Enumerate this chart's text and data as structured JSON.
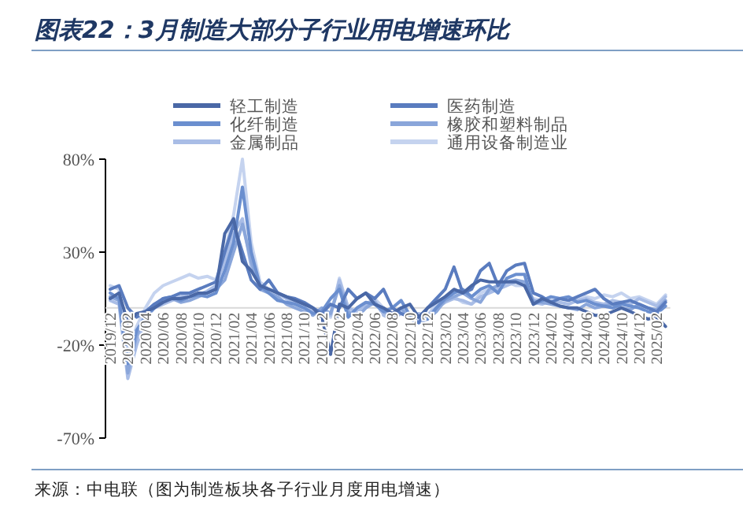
{
  "chart_data": {
    "type": "line",
    "title": "图表22：3月制造大部分子行业用电增速环比",
    "annotations": [
      "来源：中电联（图为制造板块各子行业月度用电增速）"
    ],
    "categories": [
      "2019/12",
      null,
      "2020/02",
      null,
      "2020/04",
      null,
      "2020/06",
      null,
      "2020/08",
      null,
      "2020/10",
      null,
      "2020/12",
      null,
      "2021/02",
      null,
      "2021/04",
      null,
      "2021/06",
      null,
      "2021/08",
      null,
      "2021/10",
      null,
      "2021/12",
      null,
      "2022/02",
      null,
      "2022/04",
      null,
      "2022/06",
      null,
      "2022/08",
      null,
      "2022/10",
      null,
      "2022/12",
      null,
      "2023/02",
      null,
      "2023/04",
      null,
      "2023/06",
      null,
      "2023/08",
      null,
      "2023/10",
      null,
      "2023/12",
      null,
      "2024/02",
      null,
      "2024/04",
      null,
      "2024/06",
      null,
      "2024/08",
      null,
      "2024/10",
      null,
      "2024/12",
      null,
      "2025/02",
      null
    ],
    "ylim": [
      -70,
      80
    ],
    "yticks": [
      {
        "value": -70,
        "label": "-70%"
      },
      {
        "value": -20,
        "label": "-20%"
      },
      {
        "value": 30,
        "label": "30%"
      },
      {
        "value": 80,
        "label": "80%"
      }
    ],
    "grid": false,
    "legend": "top",
    "marker": "none",
    "line_style": "solid",
    "series": [
      {
        "name": "轻工制造",
        "color": "#4a68a6",
        "values": [
          5,
          8,
          -8,
          -3,
          -2,
          0,
          3,
          5,
          5,
          6,
          8,
          8,
          10,
          40,
          48,
          25,
          20,
          12,
          10,
          8,
          6,
          4,
          2,
          0,
          -5,
          -25,
          2,
          0,
          5,
          8,
          2,
          0,
          -3,
          0,
          2,
          -5,
          0,
          3,
          6,
          10,
          8,
          12,
          15,
          14,
          14,
          14,
          14,
          12,
          2,
          5,
          3,
          1,
          0,
          0,
          -2,
          -4,
          -4,
          -2,
          0,
          -2,
          -4,
          -6,
          -5,
          -10
        ]
      },
      {
        "name": "医药制造",
        "color": "#5a7cbf",
        "values": [
          10,
          12,
          0,
          -5,
          -2,
          2,
          5,
          6,
          8,
          8,
          10,
          12,
          14,
          30,
          45,
          30,
          15,
          10,
          15,
          8,
          6,
          5,
          3,
          0,
          -3,
          2,
          0,
          10,
          5,
          8,
          5,
          10,
          0,
          -3,
          -5,
          -8,
          0,
          5,
          10,
          22,
          8,
          10,
          20,
          24,
          12,
          20,
          23,
          24,
          8,
          6,
          3,
          5,
          4,
          6,
          8,
          10,
          5,
          2,
          3,
          4,
          2,
          0,
          -2,
          3
        ]
      },
      {
        "name": "化纤制造",
        "color": "#6b8fcf",
        "values": [
          8,
          5,
          -30,
          -12,
          -5,
          0,
          5,
          6,
          4,
          6,
          7,
          6,
          8,
          20,
          35,
          65,
          30,
          12,
          8,
          4,
          3,
          2,
          0,
          -3,
          -2,
          5,
          10,
          -5,
          0,
          3,
          2,
          -2,
          0,
          4,
          -4,
          -5,
          -6,
          0,
          5,
          8,
          10,
          6,
          10,
          12,
          8,
          16,
          18,
          18,
          2,
          4,
          6,
          5,
          6,
          3,
          4,
          2,
          1,
          0,
          2,
          1,
          0,
          -2,
          -3,
          1
        ]
      },
      {
        "name": "橡胶和塑料制品",
        "color": "#8aa6da",
        "values": [
          6,
          4,
          -35,
          -15,
          -3,
          2,
          4,
          5,
          3,
          4,
          6,
          8,
          10,
          15,
          30,
          45,
          25,
          10,
          8,
          6,
          2,
          0,
          -2,
          -4,
          0,
          -3,
          12,
          -2,
          -5,
          0,
          3,
          -2,
          -5,
          0,
          -6,
          -8,
          -6,
          -2,
          4,
          6,
          8,
          5,
          3,
          10,
          12,
          14,
          15,
          14,
          4,
          3,
          2,
          1,
          0,
          -1,
          2,
          0,
          1,
          2,
          0,
          -1,
          2,
          0,
          -1,
          4
        ]
      },
      {
        "name": "金属制品",
        "color": "#a9bde6",
        "values": [
          4,
          2,
          -38,
          -20,
          -6,
          0,
          2,
          4,
          6,
          8,
          7,
          9,
          12,
          25,
          40,
          48,
          22,
          12,
          10,
          8,
          5,
          2,
          0,
          -2,
          -2,
          -4,
          15,
          0,
          -2,
          2,
          4,
          -4,
          -6,
          -3,
          -5,
          -3,
          -4,
          0,
          3,
          5,
          4,
          2,
          6,
          8,
          10,
          12,
          14,
          12,
          3,
          2,
          4,
          3,
          2,
          4,
          5,
          3,
          2,
          4,
          3,
          2,
          5,
          3,
          1,
          6
        ]
      },
      {
        "name": "通用设备制造业",
        "color": "#c5d3ef",
        "values": [
          12,
          10,
          -25,
          -10,
          0,
          8,
          12,
          14,
          16,
          18,
          16,
          17,
          15,
          30,
          50,
          80,
          35,
          14,
          10,
          8,
          5,
          3,
          2,
          -2,
          -3,
          -5,
          16,
          0,
          -3,
          2,
          5,
          0,
          -4,
          -2,
          -4,
          -6,
          -4,
          2,
          6,
          6,
          3,
          2,
          8,
          10,
          10,
          14,
          12,
          12,
          5,
          4,
          6,
          5,
          6,
          4,
          6,
          5,
          7,
          6,
          8,
          5,
          6,
          4,
          2,
          7
        ]
      }
    ]
  }
}
